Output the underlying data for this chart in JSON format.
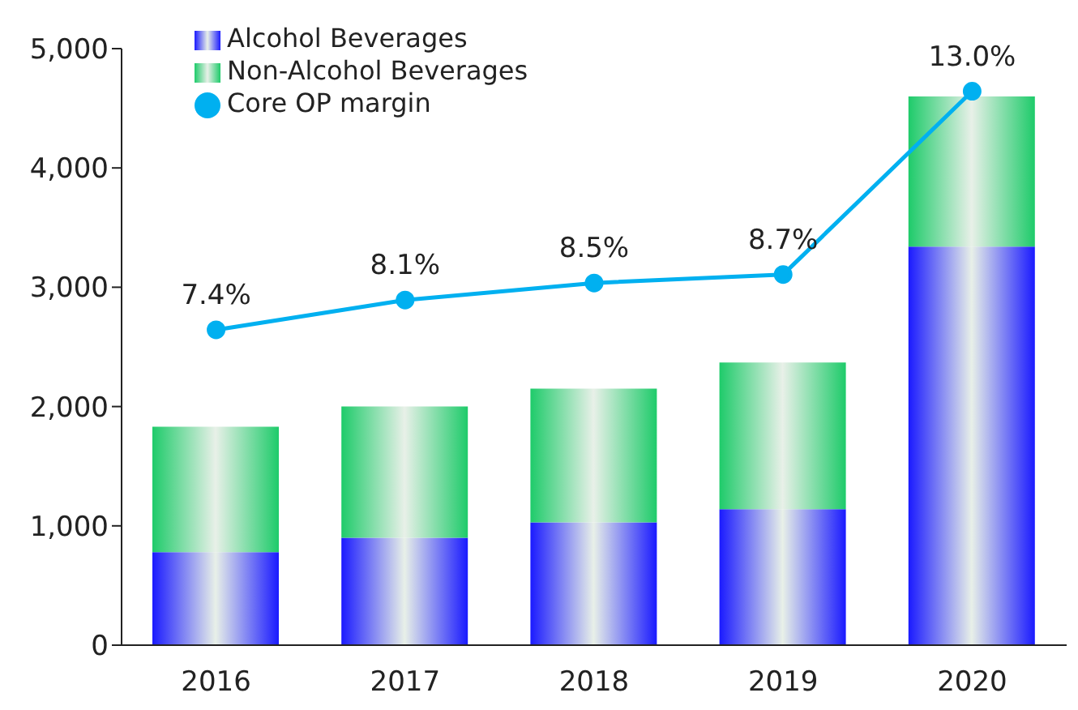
{
  "chart_data": {
    "type": "bar",
    "stacked": true,
    "categories": [
      "2016",
      "2017",
      "2018",
      "2019",
      "2020"
    ],
    "series": [
      {
        "name": "Alcohol Beverages",
        "color": "#1a1aff",
        "values": [
          780,
          900,
          1030,
          1140,
          3340
        ]
      },
      {
        "name": "Non-Alcohol Beverages",
        "color": "#1ecb6a",
        "values": [
          1050,
          1100,
          1120,
          1230,
          1260
        ]
      },
      {
        "name": "Core OP margin",
        "type": "line",
        "axis": "y2",
        "color": "#00b0f0",
        "marker": "circle",
        "values": [
          7.4,
          8.1,
          8.5,
          8.7,
          13.0
        ],
        "value_labels": [
          "7.4%",
          "8.1%",
          "8.5%",
          "8.7%",
          "13.0%"
        ]
      }
    ],
    "ylim": [
      0,
      5000
    ],
    "yticks": [
      {
        "value": 0,
        "label": "0"
      },
      {
        "value": 1000,
        "label": "1,000"
      },
      {
        "value": 2000,
        "label": "2,000"
      },
      {
        "value": 3000,
        "label": "3,000"
      },
      {
        "value": 4000,
        "label": "4,000"
      },
      {
        "value": 5000,
        "label": "5,000"
      }
    ],
    "y2lim": [
      0,
      14
    ],
    "grid": false,
    "legend": "top left"
  }
}
